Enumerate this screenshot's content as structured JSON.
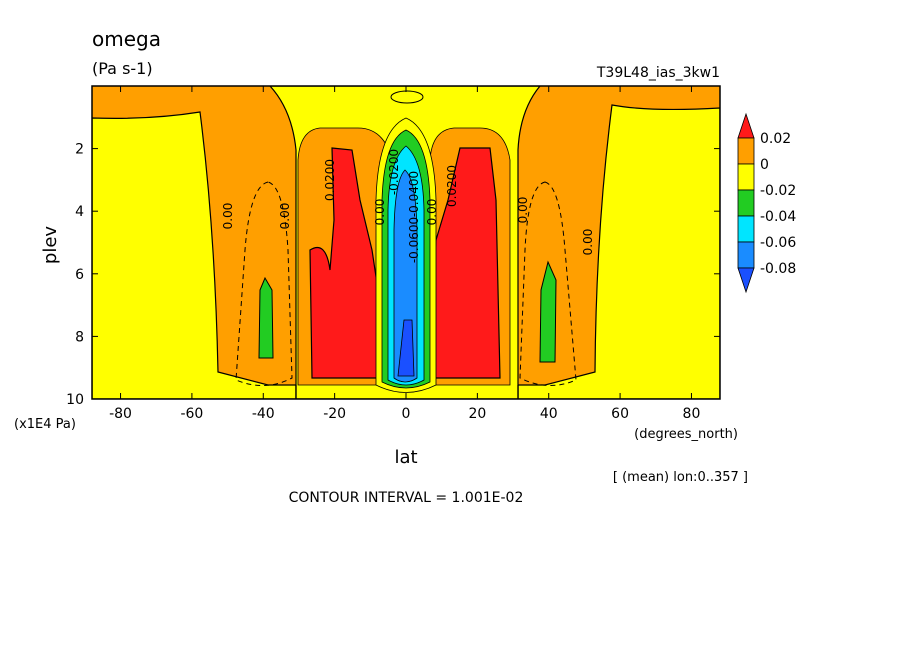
{
  "chart_data": {
    "type": "heatmap",
    "title": "omega",
    "units": "(Pa s-1)",
    "experiment": "T39L48_ias_3kw1",
    "xlabel": "lat",
    "x_units": "(degrees_north)",
    "ylabel": "plev",
    "y_units": "(x1E4 Pa)",
    "subset_note": "[ (mean) lon:0..357 ]",
    "contour_interval_text": "CONTOUR INTERVAL = 1.001E-02",
    "xlim": [
      -88,
      88
    ],
    "ylim": [
      10,
      0
    ],
    "x_ticks": [
      -80,
      -60,
      -40,
      -20,
      0,
      20,
      40,
      60,
      80
    ],
    "y_ticks": [
      2,
      4,
      6,
      8,
      10
    ],
    "colorbar": {
      "levels": [
        "0.02",
        "0",
        "-0.02",
        "-0.04",
        "-0.06",
        "-0.08"
      ],
      "colors": [
        "#ff1a1a",
        "#ff9f00",
        "#ffff00",
        "#22cc22",
        "#00e5ff",
        "#1a8cff",
        "#1a50ff"
      ]
    },
    "contour_labels": [
      "0.00",
      "0.00",
      "0.0200",
      "-0.0200",
      "-0.0400",
      "-0.0600",
      "0.00",
      "0.00",
      "0.0200",
      "0.00",
      "0.00"
    ],
    "notes": "Zonal-mean omega vs latitude and pressure. Orange (0 to 0.02) covers most of the domain; yellow (-0.02 to 0) bands near +/-35; red (>0.02) lobes at about +/-20 deg between 2 and 9.5 (x1E4 Pa); green cells near +/-40 at 6-8.5; strong negative core (down to below -0.08) centered on the equator."
  }
}
